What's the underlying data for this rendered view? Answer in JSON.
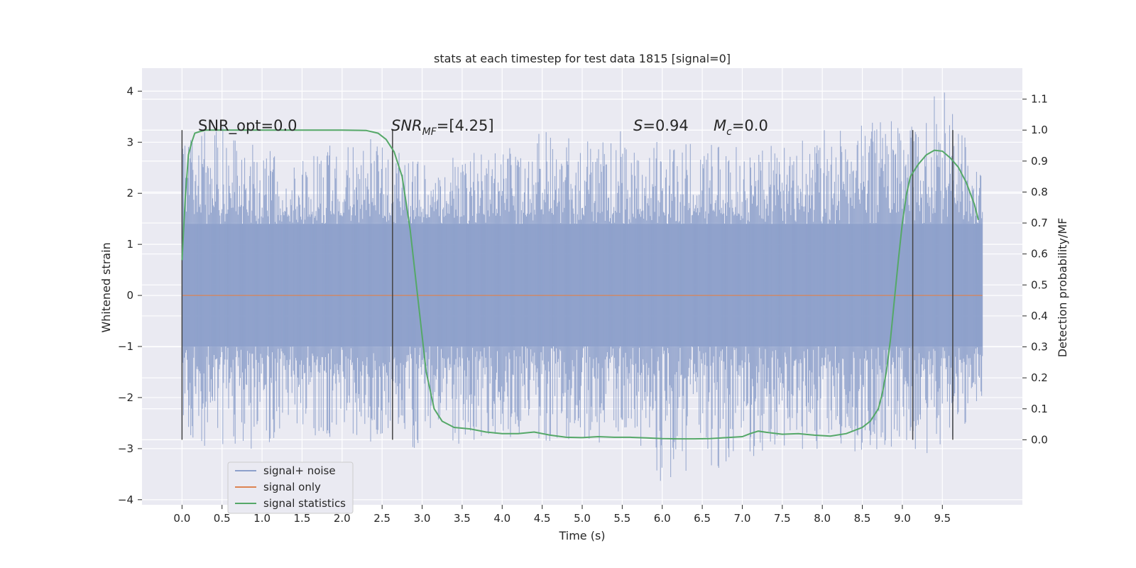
{
  "chart_data": {
    "type": "line",
    "title": "stats at each timestep for test data 1815 [signal=0]",
    "xlabel": "Time (s)",
    "ylabel": "Whitened strain",
    "ylabel_right": "Detection probability/MF",
    "xlim": [
      -0.5,
      10.5
    ],
    "ylim": [
      -4.1,
      4.45
    ],
    "ylim_right": [
      -0.21,
      1.2
    ],
    "x_ticks": [
      0.0,
      0.5,
      1.0,
      1.5,
      2.0,
      2.5,
      3.0,
      3.5,
      4.0,
      4.5,
      5.0,
      5.5,
      6.0,
      6.5,
      7.0,
      7.5,
      8.0,
      8.5,
      9.0,
      9.5
    ],
    "x_tick_labels": [
      "0.0",
      "0.5",
      "1.0",
      "1.5",
      "2.0",
      "2.5",
      "3.0",
      "3.5",
      "4.0",
      "4.5",
      "5.0",
      "5.5",
      "6.0",
      "6.5",
      "7.0",
      "7.5",
      "8.0",
      "8.5",
      "9.0",
      "9.5"
    ],
    "y_ticks": [
      4,
      3,
      2,
      1,
      0,
      -1,
      -2,
      -3,
      -4
    ],
    "y_tick_labels": [
      "4",
      "3",
      "2",
      "1",
      "0",
      "−1",
      "−2",
      "−3",
      "−4"
    ],
    "y_right_ticks": [
      1.1,
      1.0,
      0.9,
      0.8,
      0.7,
      0.6,
      0.5,
      0.4,
      0.3,
      0.2,
      0.1,
      0.0
    ],
    "y_right_tick_labels": [
      "1.1",
      "1.0",
      "0.9",
      "0.8",
      "0.7",
      "0.6",
      "0.5",
      "0.4",
      "0.3",
      "0.2",
      "0.1",
      "0.0"
    ],
    "grid": true,
    "legend_position": "lower-left",
    "series": [
      {
        "name": "signal+ noise",
        "axis": "left",
        "style": "noise-band",
        "x_range": [
          0.0,
          10.0
        ],
        "dense_band": [
          -1.0,
          1.4
        ],
        "envelope_x": [
          0.0,
          0.5,
          1.0,
          1.5,
          2.0,
          2.5,
          3.0,
          3.5,
          4.0,
          4.5,
          5.0,
          5.5,
          6.0,
          6.5,
          7.0,
          7.5,
          8.0,
          8.5,
          9.0,
          9.5,
          10.0
        ],
        "envelope_upper": [
          3.2,
          3.4,
          2.9,
          2.8,
          3.0,
          3.1,
          2.7,
          2.8,
          2.9,
          3.3,
          3.0,
          3.3,
          3.0,
          3.1,
          2.9,
          3.0,
          3.3,
          3.5,
          3.6,
          4.1,
          2.4
        ],
        "envelope_lower": [
          -2.8,
          -3.1,
          -3.0,
          -2.8,
          -2.9,
          -3.0,
          -3.2,
          -3.0,
          -2.9,
          -3.0,
          -2.9,
          -3.0,
          -3.7,
          -3.3,
          -3.6,
          -3.0,
          -3.1,
          -3.3,
          -3.1,
          -3.2,
          -2.2
        ]
      },
      {
        "name": "signal only",
        "axis": "left",
        "x": [
          0.0,
          10.0
        ],
        "y": [
          0.0,
          0.0
        ]
      },
      {
        "name": "signal statistics",
        "axis": "right",
        "x": [
          0.0,
          0.04,
          0.08,
          0.12,
          0.16,
          0.22,
          0.3,
          0.4,
          0.6,
          1.0,
          1.5,
          2.0,
          2.3,
          2.45,
          2.55,
          2.65,
          2.75,
          2.85,
          2.95,
          3.05,
          3.15,
          3.25,
          3.4,
          3.6,
          3.8,
          4.0,
          4.2,
          4.4,
          4.6,
          4.8,
          5.0,
          5.2,
          5.4,
          5.6,
          5.8,
          6.0,
          6.2,
          6.4,
          6.6,
          6.8,
          7.0,
          7.1,
          7.2,
          7.3,
          7.5,
          7.7,
          7.9,
          8.1,
          8.3,
          8.5,
          8.6,
          8.7,
          8.75,
          8.8,
          8.85,
          8.9,
          8.95,
          9.0,
          9.05,
          9.1,
          9.2,
          9.3,
          9.4,
          9.5,
          9.6,
          9.7,
          9.8,
          9.9,
          9.95
        ],
        "y": [
          0.58,
          0.78,
          0.92,
          0.96,
          0.99,
          0.995,
          1.0,
          1.0,
          1.0,
          1.0,
          1.0,
          1.0,
          0.999,
          0.99,
          0.97,
          0.93,
          0.85,
          0.68,
          0.45,
          0.22,
          0.1,
          0.06,
          0.04,
          0.035,
          0.025,
          0.02,
          0.02,
          0.025,
          0.015,
          0.008,
          0.007,
          0.01,
          0.008,
          0.008,
          0.006,
          0.004,
          0.003,
          0.003,
          0.004,
          0.007,
          0.01,
          0.02,
          0.028,
          0.024,
          0.018,
          0.02,
          0.015,
          0.012,
          0.02,
          0.04,
          0.06,
          0.1,
          0.15,
          0.22,
          0.32,
          0.45,
          0.58,
          0.7,
          0.79,
          0.85,
          0.89,
          0.92,
          0.935,
          0.932,
          0.91,
          0.88,
          0.83,
          0.76,
          0.71
        ]
      }
    ],
    "vertical_markers": [
      {
        "x": 0.0,
        "y_top": 1.0,
        "y_bottom": 0.0
      },
      {
        "x": 2.63,
        "y_top": 1.0,
        "y_bottom": 0.0
      },
      {
        "x": 9.13,
        "y_top": 1.0,
        "y_bottom": 0.0
      },
      {
        "x": 9.63,
        "y_top": 1.0,
        "y_bottom": 0.0
      }
    ],
    "annotations": {
      "snr_opt": "SNR_opt=0.0",
      "snr_mf_main": "SNR",
      "snr_mf_sub": "MF",
      "snr_mf_rest": "=[4.25]",
      "s_main": "S",
      "s_rest": "=0.94",
      "mc_main": "M",
      "mc_sub": "c",
      "mc_rest": "=0.0"
    },
    "colors": {
      "noise": "#8da0cb",
      "signal_only": "#dd8452",
      "statistics": "#55a868",
      "marker": "#444444",
      "plot_bg": "#eaeaf2",
      "grid": "#ffffff"
    }
  }
}
